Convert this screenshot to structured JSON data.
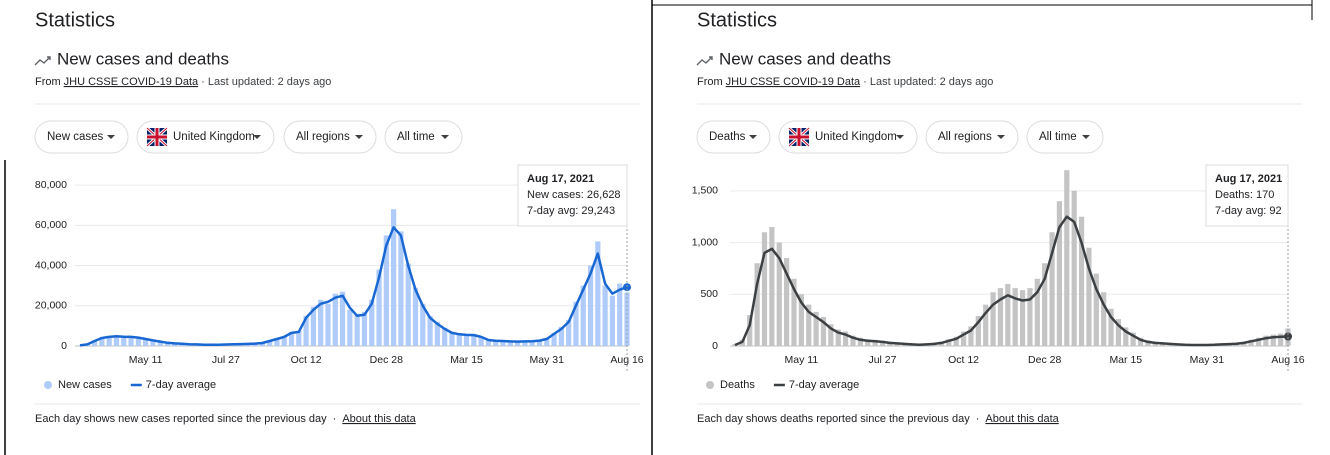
{
  "panels": [
    {
      "heading": "Statistics",
      "subheading": "New cases and deaths",
      "source": {
        "prefix": "From",
        "link": "JHU CSSE COVID-19 Data",
        "suffix": "· Last updated: 2 days ago"
      },
      "chips": [
        "New cases",
        "United Kingdom",
        "All regions",
        "All time"
      ],
      "tooltip": [
        "Aug 17, 2021",
        "New cases: 26,628",
        "7-day avg: 29,243"
      ],
      "footer": "Each day shows new cases reported since the previous day",
      "separator": "·",
      "about": "About this data"
    },
    {
      "heading": "Statistics",
      "subheading": "New cases and deaths",
      "source": {
        "prefix": "From",
        "link": "JHU CSSE COVID-19 Data",
        "suffix": "· Last updated: 2 days ago"
      },
      "chips": [
        "Deaths",
        "United Kingdom",
        "All regions",
        "All time"
      ],
      "tooltip": [
        "Aug 17, 2021",
        "Deaths: 170",
        "7-day avg: 92"
      ],
      "footer": "Each day shows deaths reported since the previous day",
      "separator": "·",
      "about": "About this data"
    }
  ],
  "chart_data": [
    {
      "type": "bar",
      "categories": [
        null,
        null,
        null,
        null,
        null,
        null,
        null,
        null,
        null,
        "May 11",
        null,
        null,
        null,
        null,
        null,
        null,
        null,
        null,
        null,
        null,
        "Jul 27",
        null,
        null,
        null,
        null,
        null,
        null,
        null,
        null,
        null,
        null,
        "Oct 12",
        null,
        null,
        null,
        null,
        null,
        null,
        null,
        null,
        null,
        null,
        "Dec 28",
        null,
        null,
        null,
        null,
        null,
        null,
        null,
        null,
        null,
        null,
        "Mar 15",
        null,
        null,
        null,
        null,
        null,
        null,
        null,
        null,
        null,
        null,
        "May 31",
        null,
        null,
        null,
        null,
        null,
        null,
        null,
        null,
        null,
        null,
        "Aug 16"
      ],
      "series": [
        {
          "name": "New cases",
          "color": "#aecbfa",
          "values": [
            400,
            1000,
            2800,
            4500,
            5000,
            4600,
            5000,
            4300,
            4500,
            3300,
            3000,
            2000,
            1700,
            1200,
            1200,
            850,
            900,
            600,
            650,
            700,
            800,
            900,
            1000,
            1100,
            1300,
            1700,
            2900,
            3900,
            5000,
            7000,
            7500,
            15000,
            19500,
            23000,
            21000,
            26000,
            27000,
            18000,
            16000,
            17000,
            23000,
            38000,
            55000,
            68000,
            57000,
            41000,
            29000,
            21000,
            15000,
            12000,
            9000,
            7000,
            6200,
            5800,
            6000,
            4200,
            3200,
            2800,
            2700,
            2500,
            2300,
            2500,
            2600,
            3000,
            4000,
            6500,
            9500,
            13000,
            22000,
            30000,
            40000,
            52000,
            30000,
            25000,
            31000,
            26628
          ]
        },
        {
          "name": "7-day average",
          "type": "line",
          "color": "#1967d2",
          "values": [
            300,
            800,
            2500,
            4000,
            4500,
            4800,
            4600,
            4500,
            4200,
            3500,
            2800,
            2200,
            1600,
            1300,
            1100,
            900,
            800,
            650,
            600,
            650,
            750,
            850,
            950,
            1050,
            1200,
            1500,
            2500,
            3500,
            4500,
            6500,
            7000,
            14000,
            18000,
            21000,
            22000,
            24000,
            25000,
            19000,
            15000,
            15500,
            21000,
            34000,
            50000,
            59000,
            55000,
            40000,
            28000,
            20000,
            14000,
            11000,
            8500,
            6500,
            5800,
            5500,
            5400,
            4500,
            3000,
            2600,
            2500,
            2300,
            2200,
            2300,
            2400,
            2700,
            3500,
            6000,
            8500,
            12000,
            20000,
            28000,
            36000,
            46000,
            31000,
            26000,
            28000,
            29243
          ]
        }
      ],
      "ylim": [
        0,
        90000
      ],
      "yticks": [
        0,
        {
          "value": 20000,
          "label": "20,000"
        },
        {
          "value": 40000,
          "label": "40,000"
        },
        {
          "value": 60000,
          "label": "60,000"
        },
        {
          "value": 80000,
          "label": "80,000"
        }
      ],
      "grid": true,
      "legend": "bottom-left"
    },
    {
      "type": "bar",
      "categories": [
        null,
        null,
        null,
        null,
        null,
        null,
        null,
        null,
        null,
        "May 11",
        null,
        null,
        null,
        null,
        null,
        null,
        null,
        null,
        null,
        null,
        "Jul 27",
        null,
        null,
        null,
        null,
        null,
        null,
        null,
        null,
        null,
        null,
        "Oct 12",
        null,
        null,
        null,
        null,
        null,
        null,
        null,
        null,
        null,
        null,
        "Dec 28",
        null,
        null,
        null,
        null,
        null,
        null,
        null,
        null,
        null,
        null,
        "Mar 15",
        null,
        null,
        null,
        null,
        null,
        null,
        null,
        null,
        null,
        null,
        "May 31",
        null,
        null,
        null,
        null,
        null,
        null,
        null,
        null,
        null,
        null,
        "Aug 16"
      ],
      "series": [
        {
          "name": "Deaths",
          "color": "#c4c4c4",
          "values": [
            20,
            60,
            300,
            800,
            1100,
            1150,
            1000,
            850,
            650,
            500,
            400,
            330,
            280,
            210,
            160,
            140,
            100,
            80,
            65,
            60,
            50,
            40,
            35,
            28,
            22,
            18,
            22,
            28,
            40,
            65,
            90,
            140,
            190,
            290,
            400,
            520,
            560,
            600,
            560,
            540,
            560,
            650,
            800,
            1100,
            1400,
            1700,
            1500,
            1250,
            950,
            700,
            520,
            360,
            260,
            180,
            130,
            80,
            55,
            40,
            35,
            28,
            22,
            18,
            15,
            14,
            14,
            16,
            20,
            25,
            30,
            40,
            60,
            80,
            100,
            110,
            120,
            170
          ]
        },
        {
          "name": "7-day average",
          "type": "line",
          "color": "#3c4043",
          "values": [
            10,
            40,
            200,
            600,
            900,
            940,
            850,
            700,
            550,
            420,
            330,
            280,
            230,
            170,
            130,
            110,
            80,
            60,
            50,
            45,
            40,
            30,
            25,
            20,
            15,
            12,
            15,
            20,
            30,
            50,
            70,
            110,
            150,
            230,
            320,
            400,
            450,
            490,
            460,
            440,
            450,
            520,
            650,
            900,
            1150,
            1250,
            1200,
            1000,
            750,
            550,
            400,
            280,
            200,
            140,
            100,
            60,
            40,
            30,
            25,
            20,
            15,
            12,
            10,
            10,
            10,
            12,
            15,
            18,
            22,
            30,
            45,
            60,
            75,
            85,
            90,
            92
          ]
        }
      ],
      "ylim": [
        0,
        1750
      ],
      "yticks": [
        0,
        500,
        {
          "value": 1000,
          "label": "1,000"
        },
        {
          "value": 1500,
          "label": "1,500"
        }
      ],
      "grid": true,
      "legend": "bottom-left"
    }
  ]
}
